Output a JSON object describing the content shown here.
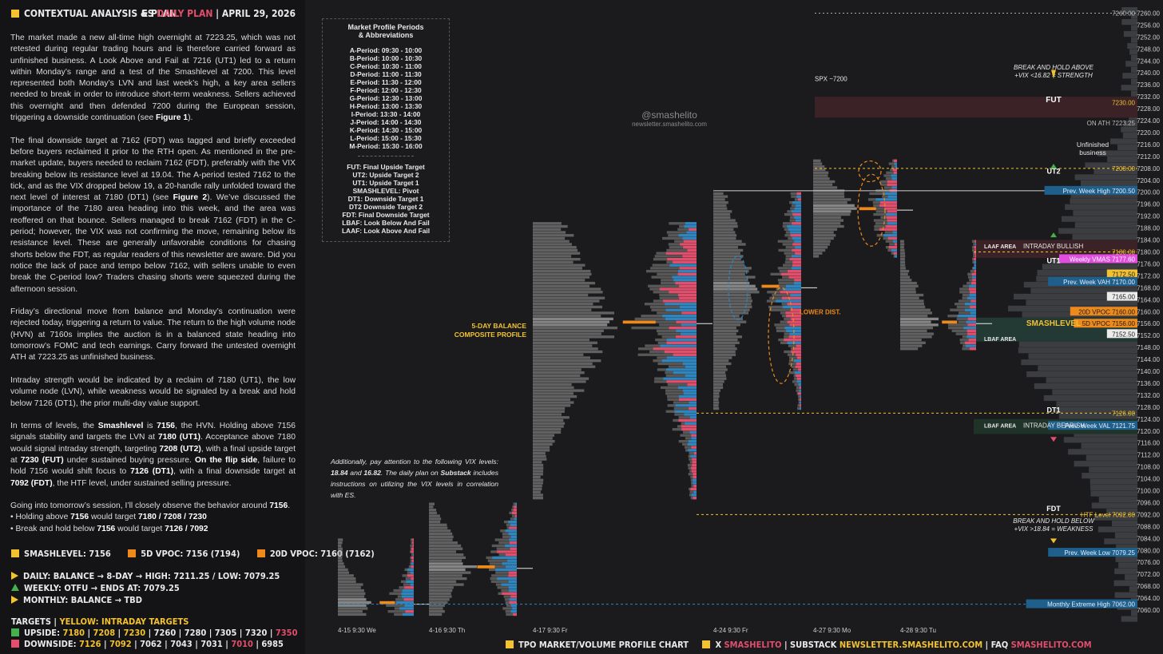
{
  "header": {
    "title": "CONTEXTUAL ANALYSIS & PLAN",
    "symbol": "ES",
    "plan": "DAILY PLAN",
    "date": "APRIL 29, 2026"
  },
  "body": {
    "p1": "The market made a new all-time high overnight at 7223.25, which was not retested during regular trading hours and is therefore carried forward as unfinished business. A Look Above and Fail at 7216 (UT1) led to a return within Monday’s range and a test of the Smashlevel at 7200. This level represented both Monday’s LVN and last week’s high, a key area sellers needed to break in order to introduce short-term weakness. Sellers achieved this overnight and then defended 7200 during the European session, triggering a downside continuation (see ",
    "p1_fig": "Figure 1",
    "p1_end": ").",
    "p2": "The final downside target at 7162 (FDT) was tagged and briefly exceeded before buyers reclaimed it prior to the RTH open. As mentioned in the pre-market update, buyers needed to reclaim 7162 (FDT), preferably with the VIX breaking below its resistance level at 19.04. The A-period tested 7162 to the tick, and as the VIX dropped below 19, a 20-handle rally unfolded toward the next level of interest at 7180 (DT1) (see ",
    "p2_fig": "Figure 2",
    "p2_end": "). We’ve discussed the importance of the 7180 area heading into this week, and the area was reoffered on that bounce. Sellers managed to break 7162 (FDT) in the C-period; however, the VIX was not confirming the move, remaining below its resistance level. These are generally unfavorable conditions for chasing shorts below the FDT, as regular readers of this newsletter are aware. Did you notice the lack of pace and tempo below 7162, with sellers unable to even break the C-period low? Traders chasing shorts were squeezed during the afternoon session.",
    "p3": "Friday’s directional move from balance and Monday’s continuation were rejected today, triggering a return to value. The return to the high volume node (HVN) at 7160s implies the auction is in a balanced state heading into tomorrow’s FOMC and tech earnings. Carry forward the untested overnight ATH at 7223.25 as unfinished business.",
    "p4": "Intraday strength would be indicated by a reclaim of 7180 (UT1), the low volume node (LVN), while weakness would be signaled by a break and hold below 7126 (DT1), the prior multi-day value support.",
    "p5a": "In terms of levels, the ",
    "p5_sl": "Smashlevel",
    "p5b": " is ",
    "p5_v": "7156",
    "p5c": ", the HVN. Holding above 7156 signals stability and targets the LVN at ",
    "p5_u1": "7180 (UT1)",
    "p5d": ". Acceptance above 7180 would signal intraday strength, targeting ",
    "p5_u2": "7208 (UT2)",
    "p5e": ", with a final upside target at ",
    "p5_fut": "7230 (FUT)",
    "p5f": " under sustained buying pressure. ",
    "p5_flip": "On the flip side",
    "p5g": ", failure to hold 7156 would shift focus to ",
    "p5_d1": "7126 (DT1)",
    "p5h": ", with a final downside target at ",
    "p5_fdt": "7092 (FDT)",
    "p5i": ", the HTF level, under sustained selling pressure.",
    "p6a": "Going into tomorrow’s session, I’ll closely observe the behavior around ",
    "p6_v": "7156",
    "p6b": ".",
    "b1a": "• Holding above ",
    "b1_v": "7156",
    "b1b": " would target ",
    "b1_t": "7180 / 7208 / 7230",
    "b2a": "• Break and hold below ",
    "b2_v": "7156",
    "b2b": " would target ",
    "b2_t": "7126 / 7092"
  },
  "levels": {
    "smash": "SMASHLEVEL: 7156",
    "vpoc5": "5D VPOC: 7156 (7194)",
    "vpoc20": "20D VPOC: 7160 (7162)"
  },
  "status": {
    "daily": "DAILY: BALANCE → 8-DAY → HIGH: 7211.25 / LOW: 7079.25",
    "weekly": "WEEKLY: OTFU → ENDS AT: 7079.25",
    "monthly": "MONTHLY: BALANCE → TBD"
  },
  "targets": {
    "title": "TARGETS",
    "sep": "|",
    "yellow_label": "YELLOW: INTRADAY TARGETS",
    "upside_label": "UPSIDE:",
    "upside_y": [
      "7180",
      "7208",
      "7230"
    ],
    "upside_w": [
      "7260",
      "7280",
      "7305",
      "7320"
    ],
    "upside_r": "7350",
    "downside_label": "DOWNSIDE:",
    "downside_y": [
      "7126",
      "7092"
    ],
    "downside_w1": [
      "7062",
      "7043",
      "7031"
    ],
    "downside_r": "7010",
    "downside_w2": "6985"
  },
  "legend": {
    "title": "Market Profile Periods\n& Abbreviations",
    "periods": [
      "A-Period: 09:30 - 10:00",
      "B-Period: 10:00 - 10:30",
      "C-Period: 10:30 - 11:00",
      "D-Period: 11:00 - 11:30",
      "E-Period: 11:30 - 12:00",
      "F-Period: 12:00 - 12:30",
      "G-Period: 12:30 - 13:00",
      "H-Period: 13:00 - 13:30",
      "I-Period: 13:30 - 14:00",
      "J-Period: 14:00 - 14:30",
      "K-Period: 14:30 - 15:00",
      "L-Period: 15:00 - 15:30",
      "M-Period: 15:30 - 16:00"
    ],
    "abbr": [
      "FUT: Final Upside Target",
      "UT2: Upside Target 2",
      "UT1: Upside Target 1",
      "SMASHLEVEL: Pivot",
      "DT1: Downside Target 1",
      "DT2 Downside Target 2",
      "FDT: Final Downside Target",
      "LBAF: Look Below And Fail",
      "LAAF: Look Above And Fail"
    ]
  },
  "note": {
    "a": "Additionally, pay attention to the following VIX levels: ",
    "v1": "18.84",
    "b": " and ",
    "v2": "16.82",
    "c": ". The daily plan on ",
    "sub": "Substack",
    "d": " includes instructions on utilizing the VIX levels in correlation with ES."
  },
  "watermark": {
    "handle": "@smashelito",
    "site": "newsletter.smashelito.com"
  },
  "footer": {
    "chart": "TPO MARKET/VOLUME PROFILE CHART",
    "x": "X",
    "x_h": "SMASHELITO",
    "sep": "|",
    "sub": "SUBSTACK",
    "sub_h": "NEWSLETTER.SMASHELITO.COM",
    "faq": "FAQ",
    "faq_h": "SMASHELITO.COM"
  },
  "colors": {
    "yellow": "#f3c230",
    "red": "#e24e6b",
    "blue": "#2e86c1",
    "orange": "#ee8a1c",
    "green": "#46b04d",
    "pink": "#e04ee0"
  },
  "chart_data": {
    "type": "market-profile",
    "y_range": [
      7056,
      7262
    ],
    "y_ticks": [
      7060,
      7064,
      7068,
      7072,
      7076,
      7080,
      7084,
      7088,
      7092,
      7096,
      7100,
      7104,
      7108,
      7112,
      7116,
      7120,
      7124,
      7128,
      7132,
      7136,
      7140,
      7144,
      7148,
      7152,
      7156,
      7160,
      7164,
      7168,
      7172,
      7176,
      7180,
      7184,
      7188,
      7192,
      7196,
      7200,
      7204,
      7208,
      7212,
      7216,
      7220,
      7224,
      7228,
      7232,
      7236,
      7240,
      7244,
      7248,
      7252,
      7256,
      7260
    ],
    "x_labels": [
      "4-15  9:30 We",
      "4-16  9:30 Th",
      "4-17  9:30 Fr",
      "4-24  9:30 Fr",
      "4-27  9:30 Mo",
      "4-28  9:30 Tu"
    ],
    "sessions": [
      {
        "low": 7058,
        "high": 7084,
        "poc": 7062
      },
      {
        "low": 7058,
        "high": 7096,
        "poc": 7074
      },
      {
        "low": 7097,
        "high": 7190,
        "poc": 7156
      },
      {
        "low": 7127,
        "high": 7200,
        "poc": 7168
      },
      {
        "low": 7178,
        "high": 7211,
        "poc": 7194
      },
      {
        "low": 7147,
        "high": 7184,
        "poc": 7156
      }
    ],
    "composite_label": "5-DAY BALANCE\nCOMPOSITE PROFILE",
    "price_tags": [
      {
        "price": 7260.0,
        "text": "7260.00",
        "style": "plain"
      },
      {
        "price": 7230.0,
        "text": "7230.00",
        "style": "level"
      },
      {
        "price": 7223.25,
        "text": "ON ATH  7223.25",
        "style": "plain"
      },
      {
        "price": 7208.0,
        "text": "7208.00",
        "style": "level"
      },
      {
        "price": 7200.5,
        "text": "Prev. Week High  7200.50",
        "style": "blue"
      },
      {
        "price": 7180.0,
        "text": "7180.00",
        "style": "level"
      },
      {
        "price": 7177.6,
        "text": "Weekly VMAS  7177.60",
        "style": "pink"
      },
      {
        "price": 7172.5,
        "text": "7172.50",
        "style": "yellow"
      },
      {
        "price": 7170.0,
        "text": "Prev. Week VAH  7170.00",
        "style": "blue"
      },
      {
        "price": 7165.0,
        "text": "7165.00",
        "style": "white"
      },
      {
        "price": 7160.0,
        "text": "20D VPOC  7160.00",
        "style": "orange"
      },
      {
        "price": 7156.0,
        "text": "5D VPOC  7156.00",
        "style": "orange"
      },
      {
        "price": 7152.5,
        "text": "7152.50",
        "style": "white"
      },
      {
        "price": 7126.0,
        "text": "7126.00",
        "style": "level"
      },
      {
        "price": 7121.75,
        "text": "Prev. Week VAL  7121.75",
        "style": "blue"
      },
      {
        "price": 7092.0,
        "text": "HTF Level  7092.00",
        "style": "level"
      },
      {
        "price": 7079.25,
        "text": "Prev. Week Low  7079.25",
        "style": "blue"
      },
      {
        "price": 7062.0,
        "text": "Monthly Extreme High  7062.00",
        "style": "blue"
      }
    ],
    "annotations": [
      {
        "price": 7231,
        "text": "FUT"
      },
      {
        "price": 7207,
        "text": "UT2"
      },
      {
        "price": 7177,
        "text": "UT1"
      },
      {
        "price": 7156,
        "text": "SMASHLEVEL"
      },
      {
        "price": 7127,
        "text": "DT1"
      },
      {
        "price": 7094,
        "text": "FDT"
      },
      {
        "price": 7242,
        "text": "BREAK AND HOLD ABOVE\n+VIX <16.82 = STRENGTH"
      },
      {
        "price": 7090,
        "text": "BREAK AND HOLD BELOW\n+VIX >18.84 = WEAKNESS"
      },
      {
        "price": 7216,
        "text": "Unfinished\nbusiness"
      },
      {
        "price": 7238,
        "text": "SPX ~7200"
      },
      {
        "price": 7182,
        "text": "LAAF AREA"
      },
      {
        "price": 7182,
        "text": "INTRADAY BULLISH"
      },
      {
        "price": 7151,
        "text": "LBAF AREA"
      },
      {
        "price": 7122,
        "text": "LBAF AREA"
      },
      {
        "price": 7122,
        "text": "INTRADAY BEARISH"
      },
      {
        "price": 7160,
        "text": "LOWER DIST."
      }
    ]
  }
}
